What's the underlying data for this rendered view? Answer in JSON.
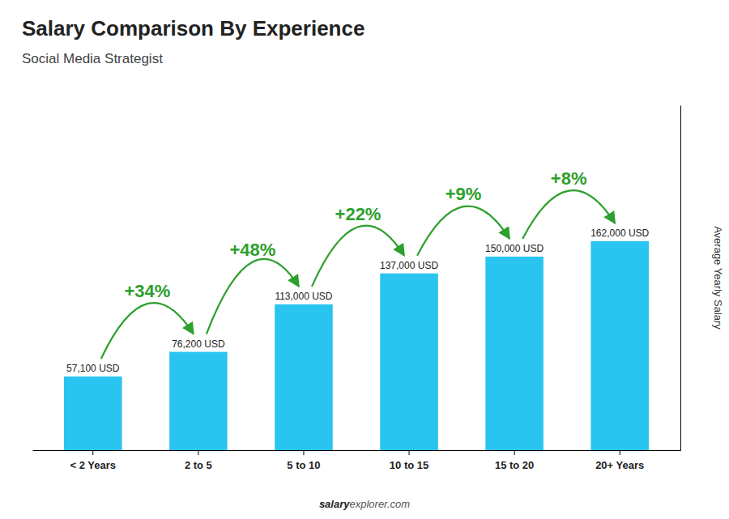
{
  "chart_data": {
    "type": "bar",
    "title": "Salary Comparison By Experience",
    "subtitle": "Social Media Strategist",
    "y_label": "Average Yearly Salary",
    "categories": [
      "< 2 Years",
      "2 to 5",
      "5 to 10",
      "10 to 15",
      "15 to 20",
      "20+ Years"
    ],
    "values": [
      57100,
      76200,
      113000,
      137000,
      150000,
      162000
    ],
    "value_labels": [
      "57,100 USD",
      "76,200 USD",
      "113,000 USD",
      "137,000 USD",
      "150,000 USD",
      "162,000 USD"
    ],
    "data_labels": true,
    "annotations": [
      "+34%",
      "+48%",
      "+22%",
      "+9%",
      "+8%"
    ],
    "footer": [
      "salary",
      "explorer.com"
    ],
    "color": "#29c4f0",
    "ylim": [
      0,
      267300
    ],
    "tick_labels": "x",
    "grid": false
  }
}
